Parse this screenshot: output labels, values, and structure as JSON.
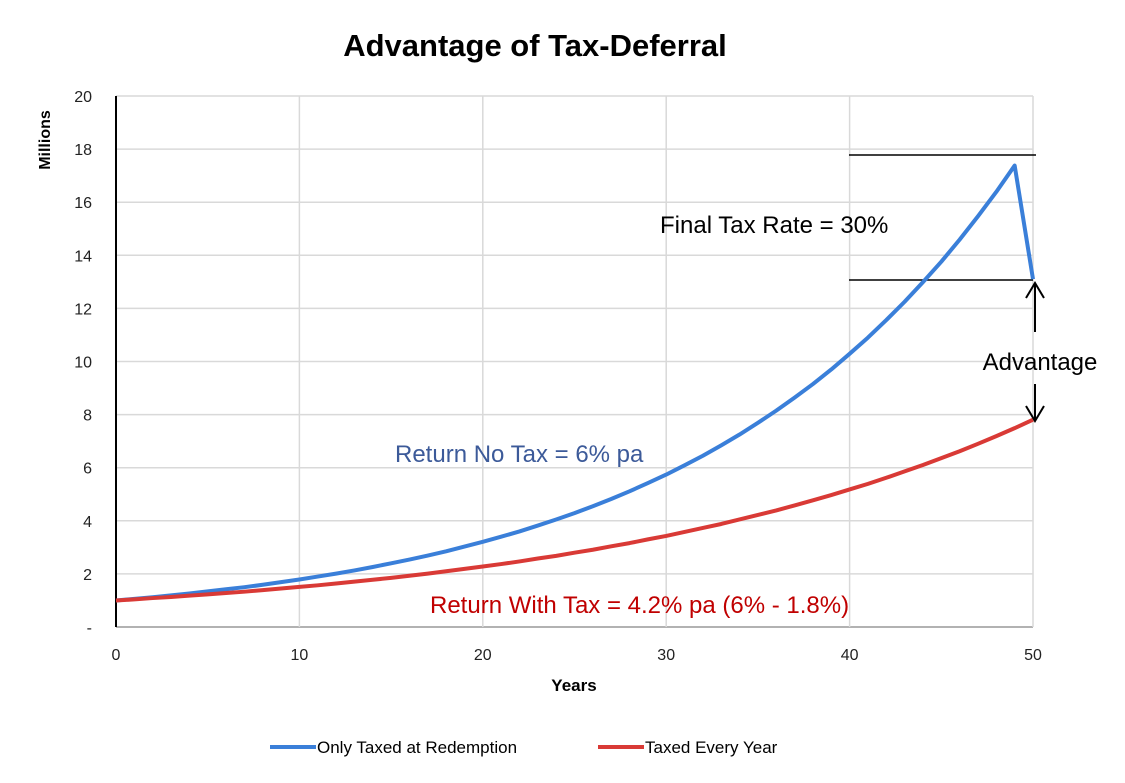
{
  "chart_data": {
    "type": "line",
    "title": "Advantage of Tax-Deferral",
    "xlabel": "Years",
    "ylabel": "Millions",
    "xlim": [
      0,
      50
    ],
    "ylim": [
      0,
      20
    ],
    "x_ticks": [
      "0",
      "10",
      "20",
      "30",
      "40",
      "50"
    ],
    "y_ticks": [
      "-",
      "2",
      "4",
      "6",
      "8",
      "10",
      "12",
      "14",
      "16",
      "18",
      "20"
    ],
    "grid": true,
    "legend_position": "bottom",
    "series": [
      {
        "name": "Only Taxed at Redemption",
        "color": "#3a7fd9",
        "values": [
          1.0,
          1.06,
          1.12,
          1.19,
          1.26,
          1.34,
          1.42,
          1.5,
          1.59,
          1.69,
          1.79,
          1.9,
          2.01,
          2.13,
          2.26,
          2.4,
          2.54,
          2.69,
          2.85,
          3.03,
          3.21,
          3.4,
          3.6,
          3.82,
          4.05,
          4.29,
          4.55,
          4.82,
          5.11,
          5.42,
          5.74,
          6.09,
          6.45,
          6.84,
          7.25,
          7.69,
          8.15,
          8.64,
          9.15,
          9.7,
          10.29,
          10.9,
          11.56,
          12.25,
          12.99,
          13.76,
          14.59,
          15.47,
          16.39,
          17.38,
          13.1
        ]
      },
      {
        "name": "Taxed Every Year",
        "color": "#d93a36",
        "values": [
          1.0,
          1.04,
          1.09,
          1.13,
          1.18,
          1.23,
          1.28,
          1.33,
          1.39,
          1.45,
          1.51,
          1.57,
          1.64,
          1.71,
          1.78,
          1.85,
          1.93,
          2.01,
          2.1,
          2.19,
          2.28,
          2.37,
          2.47,
          2.58,
          2.68,
          2.8,
          2.91,
          3.04,
          3.16,
          3.3,
          3.43,
          3.58,
          3.73,
          3.88,
          4.05,
          4.22,
          4.39,
          4.58,
          4.77,
          4.97,
          5.18,
          5.39,
          5.62,
          5.86,
          6.1,
          6.36,
          6.62,
          6.9,
          7.19,
          7.49,
          7.81
        ]
      }
    ],
    "annotations": {
      "final_tax": "Final Tax Rate = 30%",
      "advantage": "Advantage",
      "no_tax": "Return No Tax = 6% pa",
      "with_tax": "Return With Tax = 4.2% pa (6% - 1.8%)",
      "no_tax_color": "#3c5a99",
      "with_tax_color": "#c00000"
    }
  }
}
